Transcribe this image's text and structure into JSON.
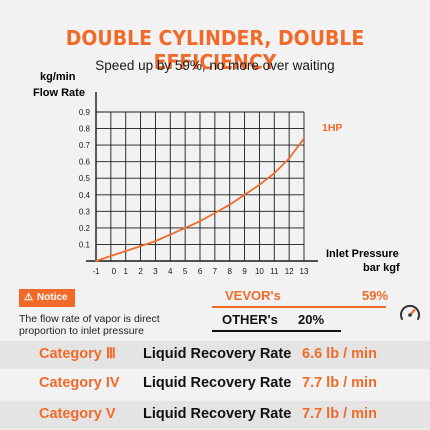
{
  "headline": "DOUBLE CYLINDER, DOUBLE EFFICIENCY",
  "subtitle": "Speed up by 59%, no more over waiting",
  "chart_data": {
    "type": "line",
    "ylabel_line1": "kg/min",
    "ylabel_line2": "Flow Rate",
    "xlabel_line1": "Inlet Pressure",
    "xlabel_line2": "bar kgf",
    "x_ticks": [
      "-1",
      "0",
      "1",
      "2",
      "3",
      "4",
      "5",
      "6",
      "7",
      "8",
      "9",
      "10",
      "11",
      "12",
      "13"
    ],
    "y_ticks": [
      "0.1",
      "0.2",
      "0.3",
      "0.4",
      "0.5",
      "0.6",
      "0.7",
      "0.8",
      "0.9"
    ],
    "xlim": [
      -1,
      13
    ],
    "ylim": [
      0,
      0.9
    ],
    "grid": true,
    "series": [
      {
        "name": "1HP",
        "color": "#f26a2a",
        "x": [
          -1,
          0,
          1,
          2,
          3,
          4,
          5,
          6,
          7,
          8,
          9,
          10,
          11,
          12,
          13
        ],
        "y": [
          0,
          0.03,
          0.06,
          0.09,
          0.12,
          0.16,
          0.2,
          0.24,
          0.29,
          0.34,
          0.4,
          0.46,
          0.53,
          0.62,
          0.74
        ]
      }
    ]
  },
  "notice": {
    "label": "Notice",
    "icon": "warning-icon",
    "text": "The flow rate of vapor is direct proportion to inlet pressure"
  },
  "comparison": {
    "vevor_label": "VEVOR's",
    "vevor_value": "59%",
    "vevor_fraction": 1.0,
    "other_label": "OTHER's",
    "other_value": "20%",
    "other_fraction": 0.74,
    "icon": "speedometer-icon"
  },
  "categories": [
    {
      "name": "Category Ⅲ",
      "metric": "Liquid Recovery Rate",
      "value": "6.6 lb / min"
    },
    {
      "name": "Category IV",
      "metric": "Liquid Recovery Rate",
      "value": "7.7 lb / min"
    },
    {
      "name": "Category V",
      "metric": "Liquid Recovery Rate",
      "value": "7.7 lb / min"
    }
  ]
}
